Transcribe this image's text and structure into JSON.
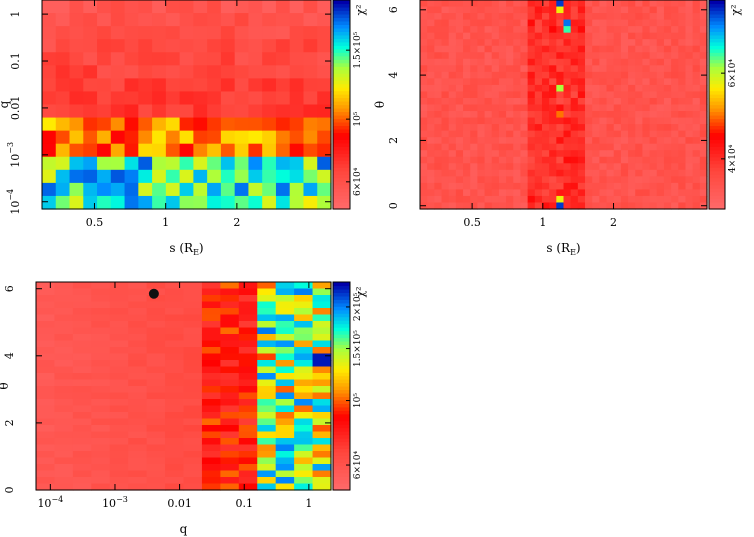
{
  "chart_data": [
    {
      "type": "heatmap",
      "id": "panel-q-vs-s",
      "title": "",
      "xlabel": "s (R",
      "xlabel_sub": "E",
      "xlabel_close": ")",
      "ylabel": "q",
      "x_scale": "log",
      "y_scale": "log",
      "xlim": [
        0.3,
        5.0
      ],
      "ylim": [
        7e-05,
        2.0
      ],
      "x_ticks": [
        {
          "v": 0.5,
          "label": "0.5"
        },
        {
          "v": 1,
          "label": "1"
        },
        {
          "v": 2,
          "label": "2"
        }
      ],
      "y_ticks": [
        {
          "v": 0.0001,
          "base": "10",
          "exp": "−4"
        },
        {
          "v": 0.001,
          "base": "10",
          "exp": "−3"
        },
        {
          "v": 0.01,
          "label": "0.01"
        },
        {
          "v": 0.1,
          "label": "0.1"
        },
        {
          "v": 1,
          "label": "1"
        }
      ],
      "grid": {
        "nx": 21,
        "ny": 16
      },
      "colorbar": {
        "label": "χ²",
        "ticks": [
          {
            "f": 0.13,
            "label": "6×10⁴"
          },
          {
            "f": 0.43,
            "label": "10⁵"
          },
          {
            "f": 0.76,
            "label": "1.5×10⁵"
          }
        ]
      }
    },
    {
      "type": "heatmap",
      "id": "panel-theta-vs-s",
      "title": "",
      "xlabel": "s (R",
      "xlabel_sub": "E",
      "xlabel_close": ")",
      "ylabel": "θ",
      "x_scale": "log",
      "y_scale": "linear",
      "xlim": [
        0.3,
        5.0
      ],
      "ylim": [
        -0.1,
        6.3
      ],
      "x_ticks": [
        {
          "v": 0.5,
          "label": "0.5"
        },
        {
          "v": 1,
          "label": "1"
        },
        {
          "v": 2,
          "label": "2"
        }
      ],
      "y_ticks": [
        {
          "v": 0,
          "label": "0"
        },
        {
          "v": 2,
          "label": "2"
        },
        {
          "v": 4,
          "label": "4"
        },
        {
          "v": 6,
          "label": "6"
        }
      ],
      "grid": {
        "nx": 40,
        "ny": 32
      },
      "colorbar": {
        "label": "χ²",
        "ticks": [
          {
            "f": 0.24,
            "label": "4×10⁴"
          },
          {
            "f": 0.65,
            "label": "6×10⁴"
          }
        ]
      }
    },
    {
      "type": "heatmap",
      "id": "panel-theta-vs-q",
      "title": "",
      "xlabel": "q",
      "ylabel": "θ",
      "x_scale": "log",
      "y_scale": "linear",
      "xlim": [
        6e-05,
        2.2
      ],
      "ylim": [
        0.0,
        6.2
      ],
      "x_ticks": [
        {
          "v": 0.0001,
          "base": "10",
          "exp": "−4"
        },
        {
          "v": 0.001,
          "base": "10",
          "exp": "−3"
        },
        {
          "v": 0.01,
          "label": "0.01"
        },
        {
          "v": 0.1,
          "label": "0.1"
        },
        {
          "v": 1,
          "label": "1"
        }
      ],
      "y_ticks": [
        {
          "v": 0,
          "label": "0"
        },
        {
          "v": 2,
          "label": "2"
        },
        {
          "v": 4,
          "label": "4"
        },
        {
          "v": 6,
          "label": "6"
        }
      ],
      "grid": {
        "nx": 16,
        "ny": 32
      },
      "marker": {
        "q": 0.004,
        "theta": 5.85
      },
      "colorbar": {
        "label": "χ²",
        "ticks": [
          {
            "f": 0.12,
            "label": "6×10⁴"
          },
          {
            "f": 0.43,
            "label": "10⁵"
          },
          {
            "f": 0.68,
            "label": "1.5×10⁵"
          },
          {
            "f": 0.88,
            "label": "2×10⁵"
          }
        ]
      }
    }
  ]
}
